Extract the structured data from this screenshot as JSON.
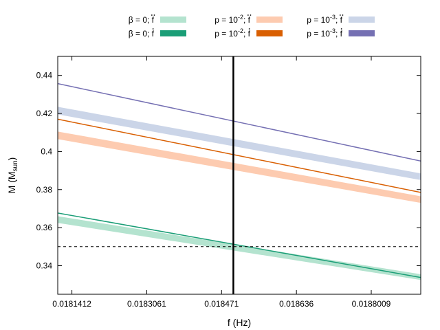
{
  "chart_data": {
    "type": "line",
    "xlabel": "f (Hz)",
    "ylabel_main": "M (M",
    "ylabel_sub": "sun",
    "ylabel_close": ")",
    "xlim": [
      0.01811,
      0.01891
    ],
    "ylim": [
      0.325,
      0.45
    ],
    "x_ticks": [
      {
        "value": 0.0181412,
        "label": "0.0181412"
      },
      {
        "value": 0.0183061,
        "label": "0.0183061"
      },
      {
        "value": 0.018471,
        "label": "0.018471"
      },
      {
        "value": 0.018636,
        "label": "0.018636"
      },
      {
        "value": 0.0188009,
        "label": "0.0188009"
      }
    ],
    "y_ticks": [
      {
        "value": 0.34,
        "label": "0.34"
      },
      {
        "value": 0.36,
        "label": "0.36"
      },
      {
        "value": 0.38,
        "label": "0.38"
      },
      {
        "value": 0.4,
        "label": "0.4"
      },
      {
        "value": 0.42,
        "label": "0.42"
      },
      {
        "value": 0.44,
        "label": "0.44"
      }
    ],
    "vertical_line": {
      "x": 0.018497
    },
    "horizontal_line": {
      "y": 0.35
    },
    "legend": [
      {
        "id": "b0_fdd",
        "pre": "β = 0; ",
        "f": "f",
        "dots": "ddot",
        "sup": "",
        "color": "#b4e3cf"
      },
      {
        "id": "b0_fd",
        "pre": "β = 0; ",
        "f": "f",
        "dots": "dot",
        "sup": "",
        "color": "#1b9e77"
      },
      {
        "id": "p2_fdd",
        "pre": "p = 10",
        "f": "f",
        "dots": "ddot",
        "sup": "-2",
        "color": "#fdcbb0"
      },
      {
        "id": "p2_fd",
        "pre": "p = 10",
        "f": "f",
        "dots": "dot",
        "sup": "-2",
        "color": "#d95f02"
      },
      {
        "id": "p3_fdd",
        "pre": "p = 10",
        "f": "f",
        "dots": "ddot",
        "sup": "-3",
        "color": "#cbd5e8"
      },
      {
        "id": "p3_fd",
        "pre": "p = 10",
        "f": "f",
        "dots": "dot",
        "sup": "-3",
        "color": "#7570b3"
      }
    ],
    "series": [
      {
        "name": "β = 0; f-ddot",
        "kind": "band",
        "color": "#b4e3cf",
        "x": [
          0.01811,
          0.01891
        ],
        "upper": [
          0.366,
          0.3355
        ],
        "lower": [
          0.3625,
          0.3325
        ]
      },
      {
        "name": "β = 0; f-dot",
        "kind": "line",
        "color": "#1b9e77",
        "x": [
          0.01811,
          0.01891
        ],
        "y": [
          0.3677,
          0.3338
        ]
      },
      {
        "name": "p = 10^-2; f-ddot",
        "kind": "band",
        "color": "#fdcbb0",
        "x": [
          0.01811,
          0.01891
        ],
        "upper": [
          0.4105,
          0.3765
        ],
        "lower": [
          0.4065,
          0.373
        ]
      },
      {
        "name": "p = 10^-2; f-dot",
        "kind": "line",
        "color": "#d95f02",
        "x": [
          0.01811,
          0.01891
        ],
        "y": [
          0.417,
          0.3785
        ]
      },
      {
        "name": "p = 10^-3; f-ddot",
        "kind": "band",
        "color": "#cbd5e8",
        "x": [
          0.01811,
          0.01891
        ],
        "upper": [
          0.4235,
          0.3885
        ],
        "lower": [
          0.4195,
          0.385
        ]
      },
      {
        "name": "p = 10^-3; f-dot",
        "kind": "line",
        "color": "#7570b3",
        "x": [
          0.01811,
          0.01891
        ],
        "y": [
          0.4357,
          0.395
        ]
      }
    ]
  }
}
